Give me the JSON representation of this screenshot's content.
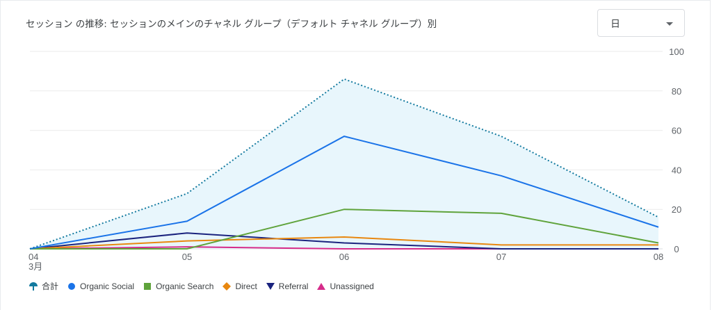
{
  "header": {
    "title": "セッション の推移: セッションのメインのチャネル グループ（デフォルト チャネル グループ）別",
    "granularity": "日"
  },
  "chart_data": {
    "type": "line",
    "x": [
      "04",
      "05",
      "06",
      "07",
      "08"
    ],
    "x_sublabel": "3月",
    "ylim": [
      0,
      100
    ],
    "yticks": [
      0,
      20,
      40,
      60,
      80,
      100
    ],
    "y_axis_side": "right",
    "grid": true,
    "legend_placement": "bottom-left",
    "series": [
      {
        "name": "合計",
        "values": [
          0,
          28,
          86,
          57,
          16
        ],
        "color": "#137a9f",
        "style": "dotted-area",
        "marker": "pin"
      },
      {
        "name": "Organic Social",
        "values": [
          0,
          14,
          57,
          37,
          11
        ],
        "color": "#1a73e8",
        "marker": "circle"
      },
      {
        "name": "Organic Search",
        "values": [
          0,
          0,
          20,
          18,
          3
        ],
        "color": "#5fa33b",
        "marker": "square"
      },
      {
        "name": "Direct",
        "values": [
          0,
          4,
          6,
          2,
          2
        ],
        "color": "#e8870f",
        "marker": "diamond"
      },
      {
        "name": "Referral",
        "values": [
          0,
          8,
          3,
          0,
          0
        ],
        "color": "#1a237e",
        "marker": "triangle-down"
      },
      {
        "name": "Unassigned",
        "values": [
          0,
          1,
          0,
          0,
          0
        ],
        "color": "#d62c8a",
        "marker": "triangle"
      }
    ]
  }
}
